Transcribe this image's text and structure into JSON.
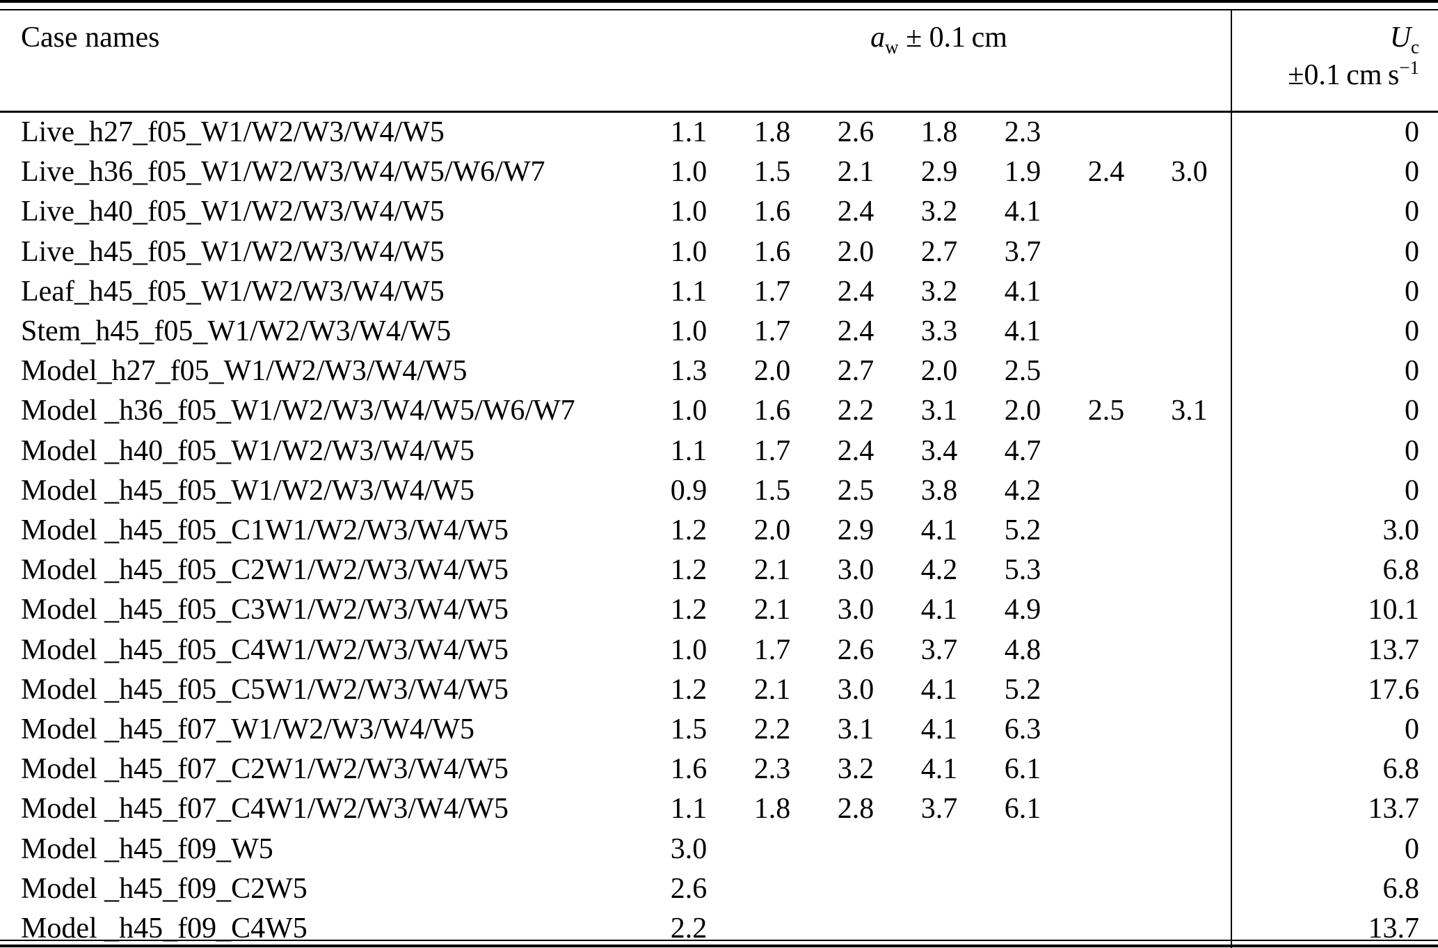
{
  "table": {
    "header": {
      "case_col": "Case names",
      "aw_symbol": "a",
      "aw_sub": "w",
      "aw_rest": " ± 0.1 cm",
      "uc_symbol": "U",
      "uc_sub": "c",
      "uc_line2_pre": "±0.1 cm s",
      "uc_line2_sup": "−1"
    },
    "rows": [
      {
        "name": "Live_h27_f05_W1/W2/W3/W4/W5",
        "values": [
          "1.1",
          "1.8",
          "2.6",
          "1.8",
          "2.3"
        ],
        "uc": "0"
      },
      {
        "name": "Live_h36_f05_W1/W2/W3/W4/W5/W6/W7",
        "values": [
          "1.0",
          "1.5",
          "2.1",
          "2.9",
          "1.9",
          "2.4",
          "3.0"
        ],
        "uc": "0"
      },
      {
        "name": "Live_h40_f05_W1/W2/W3/W4/W5",
        "values": [
          "1.0",
          "1.6",
          "2.4",
          "3.2",
          "4.1"
        ],
        "uc": "0"
      },
      {
        "name": "Live_h45_f05_W1/W2/W3/W4/W5",
        "values": [
          "1.0",
          "1.6",
          "2.0",
          "2.7",
          "3.7"
        ],
        "uc": "0"
      },
      {
        "name": "Leaf_h45_f05_W1/W2/W3/W4/W5",
        "values": [
          "1.1",
          "1.7",
          "2.4",
          "3.2",
          "4.1"
        ],
        "uc": "0"
      },
      {
        "name": "Stem_h45_f05_W1/W2/W3/W4/W5",
        "values": [
          "1.0",
          "1.7",
          "2.4",
          "3.3",
          "4.1"
        ],
        "uc": "0"
      },
      {
        "name": "Model_h27_f05_W1/W2/W3/W4/W5",
        "values": [
          "1.3",
          "2.0",
          "2.7",
          "2.0",
          "2.5"
        ],
        "uc": "0"
      },
      {
        "name": "Model _h36_f05_W1/W2/W3/W4/W5/W6/W7",
        "values": [
          "1.0",
          "1.6",
          "2.2",
          "3.1",
          "2.0",
          "2.5",
          "3.1"
        ],
        "uc": "0"
      },
      {
        "name": "Model _h40_f05_W1/W2/W3/W4/W5",
        "values": [
          "1.1",
          "1.7",
          "2.4",
          "3.4",
          "4.7"
        ],
        "uc": "0"
      },
      {
        "name": "Model _h45_f05_W1/W2/W3/W4/W5",
        "values": [
          "0.9",
          "1.5",
          "2.5",
          "3.8",
          "4.2"
        ],
        "uc": "0"
      },
      {
        "name": "Model _h45_f05_C1W1/W2/W3/W4/W5",
        "values": [
          "1.2",
          "2.0",
          "2.9",
          "4.1",
          "5.2"
        ],
        "uc": "3.0"
      },
      {
        "name": "Model _h45_f05_C2W1/W2/W3/W4/W5",
        "values": [
          "1.2",
          "2.1",
          "3.0",
          "4.2",
          "5.3"
        ],
        "uc": "6.8"
      },
      {
        "name": "Model _h45_f05_C3W1/W2/W3/W4/W5",
        "values": [
          "1.2",
          "2.1",
          "3.0",
          "4.1",
          "4.9"
        ],
        "uc": "10.1"
      },
      {
        "name": "Model _h45_f05_C4W1/W2/W3/W4/W5",
        "values": [
          "1.0",
          "1.7",
          "2.6",
          "3.7",
          "4.8"
        ],
        "uc": "13.7"
      },
      {
        "name": "Model _h45_f05_C5W1/W2/W3/W4/W5",
        "values": [
          "1.2",
          "2.1",
          "3.0",
          "4.1",
          "5.2"
        ],
        "uc": "17.6"
      },
      {
        "name": "Model _h45_f07_W1/W2/W3/W4/W5",
        "values": [
          "1.5",
          "2.2",
          "3.1",
          "4.1",
          "6.3"
        ],
        "uc": "0"
      },
      {
        "name": "Model _h45_f07_C2W1/W2/W3/W4/W5",
        "values": [
          "1.6",
          "2.3",
          "3.2",
          "4.1",
          "6.1"
        ],
        "uc": "6.8"
      },
      {
        "name": "Model _h45_f07_C4W1/W2/W3/W4/W5",
        "values": [
          "1.1",
          "1.8",
          "2.8",
          "3.7",
          "6.1"
        ],
        "uc": "13.7"
      },
      {
        "name": "Model _h45_f09_W5",
        "values": [
          "3.0"
        ],
        "uc": "0"
      },
      {
        "name": "Model _h45_f09_C2W5",
        "values": [
          "2.6"
        ],
        "uc": "6.8"
      },
      {
        "name": "Model _h45_f09_C4W5",
        "values": [
          "2.2"
        ],
        "uc": "13.7"
      }
    ]
  }
}
